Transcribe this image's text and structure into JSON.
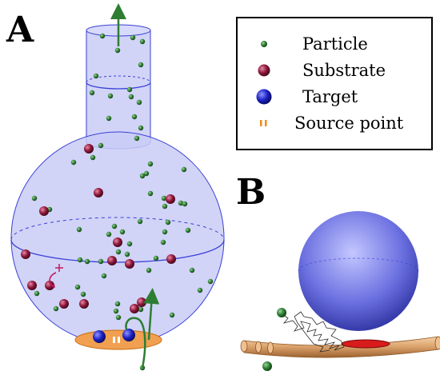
{
  "panels": {
    "a_letter": "A",
    "b_letter": "B"
  },
  "legend": {
    "items": [
      {
        "label": "Particle",
        "marker": "particle"
      },
      {
        "label": "Substrate",
        "marker": "substrate"
      },
      {
        "label": "Target",
        "marker": "target"
      },
      {
        "label": "Source point",
        "marker": "source"
      }
    ]
  },
  "colors": {
    "flask_fill": "#c9cdf6",
    "flask_stroke": "#3a3fd6",
    "particle": "#2e7d32",
    "substrate": "#8b1538",
    "target": "#1c22c4",
    "source": "#f08a1e",
    "arrow": "#2e7d32",
    "reaction_mark": "#c2185b",
    "membrane": "#d9a06a"
  }
}
